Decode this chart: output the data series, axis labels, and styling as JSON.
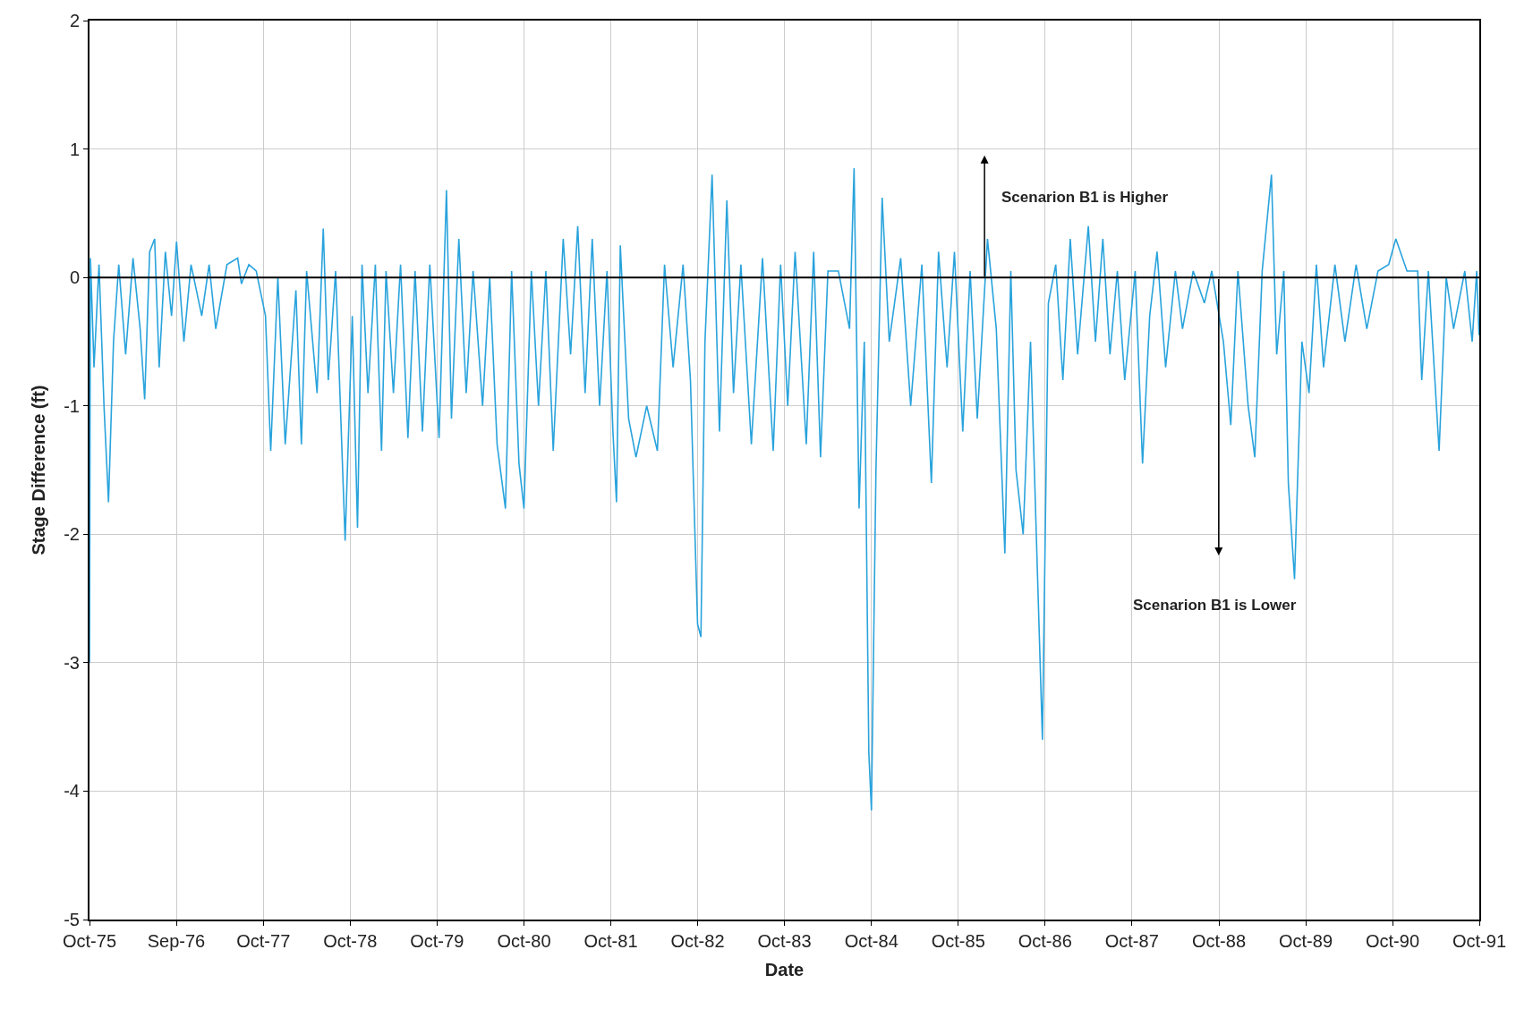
{
  "chart_data": {
    "type": "line",
    "xlabel": "Date",
    "ylabel": "Stage Difference (ft)",
    "annotations": [
      "Scenarion B1 is Higher",
      "Scenarion B1 is Lower"
    ],
    "series": [
      {
        "color": "#29a3dc",
        "x": [
          "1975-10-01",
          "1975-10-05",
          "1975-10-20",
          "1975-11-10",
          "1975-12-01",
          "1975-12-20",
          "1976-01-10",
          "1976-02-01",
          "1976-03-01",
          "1976-04-01",
          "1976-05-01",
          "1976-05-20",
          "1976-06-10",
          "1976-07-01",
          "1976-07-20",
          "1976-08-15",
          "1976-09-10",
          "1976-10-01",
          "1976-11-01",
          "1976-12-01",
          "1977-01-15",
          "1977-02-15",
          "1977-03-15",
          "1977-05-01",
          "1977-06-15",
          "1977-07-01",
          "1977-08-01",
          "1977-09-01",
          "1977-10-10",
          "1977-11-01",
          "1977-12-01",
          "1978-01-01",
          "1978-02-15",
          "1978-03-10",
          "1978-04-01",
          "1978-05-15",
          "1978-06-10",
          "1978-07-01",
          "1978-08-01",
          "1978-09-10",
          "1978-10-10",
          "1978-11-01",
          "1978-11-20",
          "1978-12-15",
          "1979-01-15",
          "1979-02-10",
          "1979-03-01",
          "1979-04-01",
          "1979-05-01",
          "1979-06-01",
          "1979-07-01",
          "1979-08-01",
          "1979-09-01",
          "1979-10-10",
          "1979-11-10",
          "1979-12-01",
          "1980-01-01",
          "1980-02-01",
          "1980-03-01",
          "1980-04-10",
          "1980-05-10",
          "1980-06-10",
          "1980-07-15",
          "1980-08-10",
          "1980-09-10",
          "1980-10-01",
          "1980-11-01",
          "1980-12-01",
          "1981-01-01",
          "1981-02-01",
          "1981-03-15",
          "1981-04-15",
          "1981-05-15",
          "1981-06-15",
          "1981-07-15",
          "1981-08-15",
          "1981-09-15",
          "1981-10-10",
          "1981-10-25",
          "1981-11-10",
          "1981-12-15",
          "1982-01-15",
          "1982-03-01",
          "1982-04-15",
          "1982-05-15",
          "1982-06-20",
          "1982-08-01",
          "1982-09-01",
          "1982-10-01",
          "1982-10-15",
          "1982-11-01",
          "1982-12-01",
          "1983-01-01",
          "1983-02-01",
          "1983-03-01",
          "1983-04-01",
          "1983-05-15",
          "1983-07-01",
          "1983-08-15",
          "1983-09-15",
          "1983-10-15",
          "1983-11-15",
          "1984-01-01",
          "1984-02-01",
          "1984-03-01",
          "1984-04-01",
          "1984-05-15",
          "1984-07-01",
          "1984-07-20",
          "1984-08-10",
          "1984-09-01",
          "1984-09-20",
          "1984-10-01",
          "1984-10-20",
          "1984-11-15",
          "1984-12-15",
          "1985-02-01",
          "1985-03-15",
          "1985-05-01",
          "1985-06-10",
          "1985-07-10",
          "1985-08-15",
          "1985-09-15",
          "1985-10-20",
          "1985-11-20",
          "1985-12-20",
          "1986-02-01",
          "1986-03-10",
          "1986-04-15",
          "1986-05-10",
          "1986-06-01",
          "1986-07-01",
          "1986-08-01",
          "1986-09-20",
          "1986-10-15",
          "1986-11-15",
          "1986-12-15",
          "1987-01-15",
          "1987-02-15",
          "1987-04-01",
          "1987-05-01",
          "1987-06-01",
          "1987-07-01",
          "1987-08-01",
          "1987-09-01",
          "1987-10-15",
          "1987-11-15",
          "1987-12-15",
          "1988-01-15",
          "1988-02-20",
          "1988-04-01",
          "1988-05-01",
          "1988-06-15",
          "1988-08-01",
          "1988-09-01",
          "1988-10-20",
          "1988-11-20",
          "1988-12-20",
          "1989-02-01",
          "1989-03-01",
          "1989-04-01",
          "1989-05-10",
          "1989-06-01",
          "1989-07-01",
          "1989-07-20",
          "1989-08-15",
          "1989-09-15",
          "1989-10-15",
          "1989-11-15",
          "1989-12-15",
          "1990-02-01",
          "1990-03-15",
          "1990-05-01",
          "1990-06-15",
          "1990-08-01",
          "1990-09-15",
          "1990-10-15",
          "1990-12-01",
          "1991-01-15",
          "1991-02-01",
          "1991-03-01",
          "1991-04-15",
          "1991-05-15",
          "1991-06-15",
          "1991-08-01",
          "1991-09-01",
          "1991-09-20",
          "1991-09-30"
        ],
        "values": [
          -3.0,
          0.15,
          -0.7,
          0.1,
          -1.0,
          -1.75,
          -0.5,
          0.1,
          -0.6,
          0.15,
          -0.4,
          -0.95,
          0.2,
          0.3,
          -0.7,
          0.2,
          -0.3,
          0.28,
          -0.5,
          0.1,
          -0.3,
          0.1,
          -0.4,
          0.1,
          0.15,
          -0.05,
          0.1,
          0.05,
          -0.3,
          -1.35,
          0.0,
          -1.3,
          -0.1,
          -1.3,
          0.05,
          -0.9,
          0.38,
          -0.8,
          0.05,
          -2.05,
          -0.3,
          -1.95,
          0.1,
          -0.9,
          0.1,
          -1.35,
          0.05,
          -0.9,
          0.1,
          -1.25,
          0.05,
          -1.2,
          0.1,
          -1.25,
          0.68,
          -1.1,
          0.3,
          -0.9,
          0.05,
          -1.0,
          0.0,
          -1.3,
          -1.8,
          0.05,
          -1.45,
          -1.8,
          0.05,
          -1.0,
          0.05,
          -1.35,
          0.3,
          -0.6,
          0.4,
          -0.9,
          0.3,
          -1.0,
          0.05,
          -1.2,
          -1.75,
          0.25,
          -1.1,
          -1.4,
          -1.0,
          -1.35,
          0.1,
          -0.7,
          0.1,
          -0.8,
          -2.7,
          -2.8,
          -0.5,
          0.8,
          -1.2,
          0.6,
          -0.9,
          0.1,
          -1.3,
          0.15,
          -1.35,
          0.1,
          -1.0,
          0.2,
          -1.3,
          0.2,
          -1.4,
          0.05,
          0.05,
          -0.4,
          0.85,
          -1.8,
          -0.5,
          -3.7,
          -4.15,
          -1.5,
          0.62,
          -0.5,
          0.15,
          -1.0,
          0.1,
          -1.6,
          0.2,
          -0.7,
          0.2,
          -1.2,
          0.05,
          -1.1,
          0.3,
          -0.4,
          -2.15,
          0.05,
          -1.5,
          -2.0,
          -0.5,
          -3.6,
          -0.2,
          0.1,
          -0.8,
          0.3,
          -0.6,
          0.4,
          -0.5,
          0.3,
          -0.6,
          0.05,
          -0.8,
          0.05,
          -1.45,
          -0.3,
          0.2,
          -0.7,
          0.05,
          -0.4,
          0.05,
          -0.2,
          0.05,
          -0.5,
          -1.15,
          0.05,
          -1.0,
          -1.4,
          0.05,
          0.8,
          -0.6,
          0.05,
          -1.6,
          -2.35,
          -0.5,
          -0.9,
          0.1,
          -0.7,
          0.1,
          -0.5,
          0.1,
          -0.4,
          0.05,
          0.1,
          0.3,
          0.05,
          0.05,
          -0.8,
          0.05,
          -1.35,
          0.0,
          -0.4,
          0.05,
          -0.5,
          0.05,
          -0.45
        ]
      }
    ],
    "xlim": [
      "1975-10-01",
      "1991-10-01"
    ],
    "xticks": [
      {
        "value": "1975-10-01",
        "label": "Oct-75"
      },
      {
        "value": "1976-09-30",
        "label": "Sep-76"
      },
      {
        "value": "1977-10-01",
        "label": "Oct-77"
      },
      {
        "value": "1978-10-01",
        "label": "Oct-78"
      },
      {
        "value": "1979-10-01",
        "label": "Oct-79"
      },
      {
        "value": "1980-10-01",
        "label": "Oct-80"
      },
      {
        "value": "1981-10-01",
        "label": "Oct-81"
      },
      {
        "value": "1982-10-01",
        "label": "Oct-82"
      },
      {
        "value": "1983-10-01",
        "label": "Oct-83"
      },
      {
        "value": "1984-10-01",
        "label": "Oct-84"
      },
      {
        "value": "1985-10-01",
        "label": "Oct-85"
      },
      {
        "value": "1986-10-01",
        "label": "Oct-86"
      },
      {
        "value": "1987-10-01",
        "label": "Oct-87"
      },
      {
        "value": "1988-10-01",
        "label": "Oct-88"
      },
      {
        "value": "1989-10-01",
        "label": "Oct-89"
      },
      {
        "value": "1990-10-01",
        "label": "Oct-90"
      },
      {
        "value": "1991-10-01",
        "label": "Oct-91"
      }
    ],
    "ylim": [
      -5,
      2
    ],
    "yticks": [
      -5,
      -4,
      -3,
      -2,
      -1,
      0,
      1,
      2
    ],
    "ref_lines": [
      {
        "axis": "y",
        "value": 0,
        "color": "#000000"
      }
    ],
    "grid": true,
    "marker": "none",
    "line_style": "solid"
  }
}
